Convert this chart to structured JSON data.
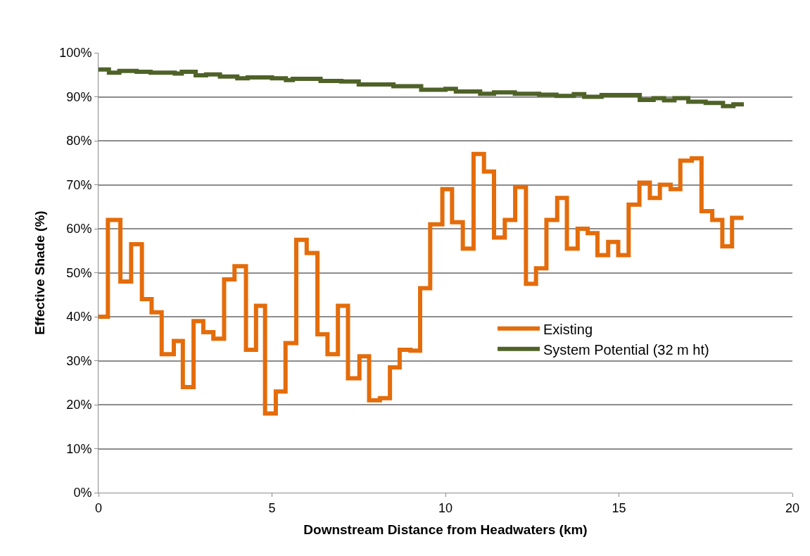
{
  "chart_data": {
    "type": "step",
    "xlabel": "Downstream Distance from Headwaters (km)",
    "ylabel": "Effective Shade (%)",
    "xlim": [
      0,
      20
    ],
    "xticks": [
      0,
      5,
      10,
      15,
      20
    ],
    "ylim": [
      0,
      100
    ],
    "yticks": [
      {
        "value": 0,
        "label": "0%"
      },
      {
        "value": 10,
        "label": "10%"
      },
      {
        "value": 20,
        "label": "20%"
      },
      {
        "value": 30,
        "label": "30%"
      },
      {
        "value": 40,
        "label": "40%"
      },
      {
        "value": 50,
        "label": "50%"
      },
      {
        "value": 60,
        "label": "60%"
      },
      {
        "value": 70,
        "label": "70%"
      },
      {
        "value": 80,
        "label": "80%"
      },
      {
        "value": 90,
        "label": "90%"
      },
      {
        "value": 100,
        "label": "100%"
      }
    ],
    "grid": "y",
    "legend": "bottom right",
    "marker": "none",
    "line_style": "solid",
    "series": [
      {
        "name": "Existing",
        "color": "#e46c0a",
        "x": [
          0,
          0.27,
          0.63,
          0.94,
          1.25,
          1.53,
          1.82,
          2.17,
          2.43,
          2.74,
          3.02,
          3.31,
          3.62,
          3.92,
          4.25,
          4.54,
          4.8,
          5.11,
          5.39,
          5.7,
          6.0,
          6.31,
          6.6,
          6.9,
          7.19,
          7.52,
          7.8,
          8.11,
          8.4,
          8.68,
          8.99,
          9.27,
          9.56,
          9.91,
          10.19,
          10.5,
          10.81,
          11.11,
          11.4,
          11.71,
          12.01,
          12.32,
          12.61,
          12.91,
          13.22,
          13.5,
          13.81,
          14.1,
          14.38,
          14.69,
          14.98,
          15.28,
          15.59,
          15.89,
          16.18,
          16.49,
          16.77,
          17.1,
          17.38,
          17.69,
          17.98,
          18.26,
          18.59
        ],
        "values": [
          40,
          62,
          48,
          56.5,
          44,
          41,
          31.5,
          34.5,
          24,
          39,
          36.5,
          35,
          48.5,
          51.5,
          32.5,
          42.5,
          18,
          23,
          34,
          57.5,
          54.5,
          36,
          31.5,
          42.5,
          26,
          31,
          21,
          21.5,
          28.5,
          32.5,
          32.3,
          46.5,
          61,
          69,
          61.5,
          55.5,
          77,
          73,
          58,
          62,
          69.5,
          47.5,
          51,
          62,
          67,
          55.5,
          60,
          59,
          54,
          57,
          54,
          65.5,
          70.5,
          67,
          70,
          69,
          75.5,
          76,
          64,
          62,
          56,
          62.5,
          62.5
        ]
      },
      {
        "name": "System Potential (32 m ht)",
        "color": "#4f6228",
        "x": [
          0,
          0.3,
          0.6,
          1.1,
          1.5,
          2.2,
          2.4,
          2.8,
          3.1,
          3.5,
          4.0,
          4.3,
          5.0,
          5.4,
          5.6,
          6.4,
          7.0,
          7.5,
          8.5,
          9.3,
          10.0,
          10.3,
          11.0,
          11.4,
          12.0,
          12.7,
          13.2,
          13.7,
          14.0,
          14.5,
          15.6,
          16.0,
          16.3,
          16.6,
          17.0,
          17.5,
          18.0,
          18.3,
          18.6
        ],
        "values": [
          96.2,
          95.5,
          95.9,
          95.7,
          95.5,
          95.3,
          95.7,
          94.9,
          95.1,
          94.6,
          94.2,
          94.4,
          94.2,
          93.8,
          94.1,
          93.6,
          93.5,
          92.8,
          92.4,
          91.6,
          91.8,
          91.2,
          90.7,
          91.0,
          90.7,
          90.5,
          90.2,
          90.6,
          90.0,
          90.4,
          89.3,
          89.7,
          89.2,
          89.7,
          88.9,
          88.6,
          87.9,
          88.3,
          88.3
        ]
      }
    ]
  }
}
